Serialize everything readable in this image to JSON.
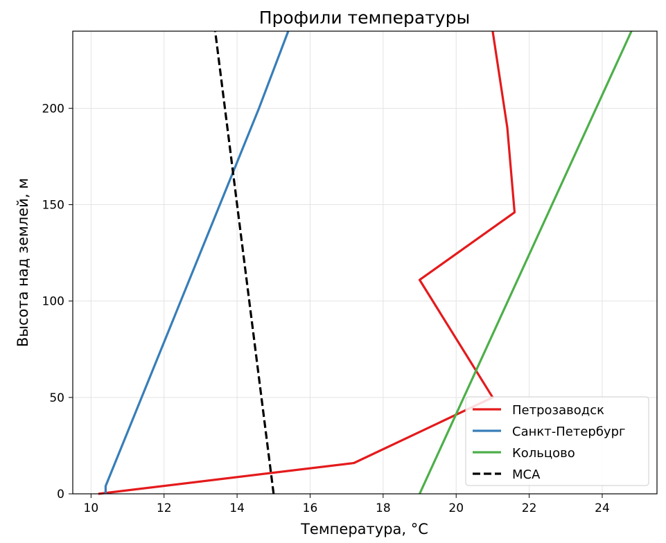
{
  "chart_data": {
    "type": "line",
    "title": "Профили температуры",
    "xlabel": "Температура, °C",
    "ylabel": "Высота над землей, м",
    "xlim": [
      9.5,
      25.5
    ],
    "ylim": [
      0,
      240
    ],
    "xticks": [
      10,
      12,
      14,
      16,
      18,
      20,
      22,
      24
    ],
    "yticks": [
      0,
      50,
      100,
      150,
      200
    ],
    "grid": true,
    "legend_position": "bottom-right",
    "series": [
      {
        "name": "Петрозаводск",
        "color": "#e41a1c",
        "dash": "solid",
        "points": [
          [
            10.2,
            0
          ],
          [
            17.2,
            16
          ],
          [
            21.0,
            50
          ],
          [
            19.0,
            111
          ],
          [
            21.6,
            146
          ],
          [
            21.4,
            190
          ],
          [
            21.0,
            240
          ]
        ]
      },
      {
        "name": "Санкт-Петербург",
        "color": "#377eb8",
        "dash": "solid",
        "points": [
          [
            10.4,
            0
          ],
          [
            10.4,
            4
          ],
          [
            14.6,
            200
          ],
          [
            15.4,
            240
          ]
        ]
      },
      {
        "name": "Кольцово",
        "color": "#4daf4a",
        "dash": "solid",
        "points": [
          [
            19.0,
            0
          ],
          [
            24.8,
            240
          ]
        ]
      },
      {
        "name": "МСА",
        "color": "#000000",
        "dash": "dashed",
        "points": [
          [
            15.0,
            0
          ],
          [
            13.4,
            240
          ]
        ]
      }
    ]
  }
}
